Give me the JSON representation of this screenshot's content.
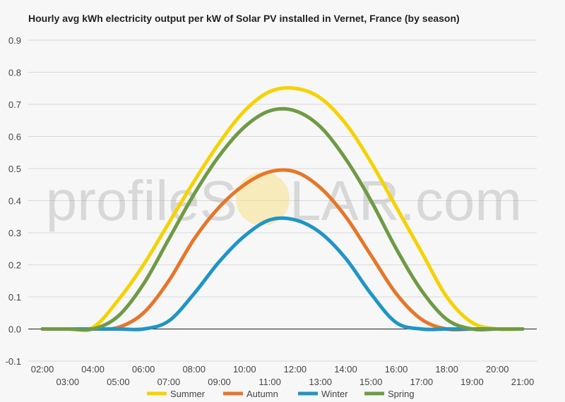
{
  "chart_data": {
    "type": "line",
    "title": "Hourly avg kWh electricity output per kW of Solar PV installed in Vernet, France (by season)",
    "xlabel": "",
    "ylabel": "",
    "x": [
      2,
      3,
      4,
      5,
      6,
      7,
      8,
      9,
      10,
      11,
      12,
      13,
      14,
      15,
      16,
      17,
      18,
      19,
      20,
      21
    ],
    "x_tick_labels": [
      "02:00",
      "03:00",
      "04:00",
      "05:00",
      "06:00",
      "07:00",
      "08:00",
      "09:00",
      "10:00",
      "11:00",
      "12:00",
      "13:00",
      "14:00",
      "15:00",
      "16:00",
      "17:00",
      "18:00",
      "19:00",
      "20:00",
      "21:00"
    ],
    "ylim": [
      -0.1,
      0.9
    ],
    "y_ticks": [
      "-0.1",
      "0.0",
      "0.1",
      "0.2",
      "0.3",
      "0.4",
      "0.5",
      "0.6",
      "0.7",
      "0.8",
      "0.9"
    ],
    "grid": true,
    "legend_position": "bottom",
    "series": [
      {
        "name": "Summer",
        "color": "#f5d200",
        "values": [
          0,
          0,
          0.005,
          0.09,
          0.2,
          0.33,
          0.46,
          0.58,
          0.68,
          0.74,
          0.75,
          0.72,
          0.64,
          0.52,
          0.38,
          0.24,
          0.1,
          0.02,
          0,
          0
        ]
      },
      {
        "name": "Autumn",
        "color": "#e6762a",
        "values": [
          0,
          0,
          0,
          0.005,
          0.05,
          0.15,
          0.28,
          0.38,
          0.45,
          0.49,
          0.49,
          0.44,
          0.35,
          0.23,
          0.11,
          0.03,
          0,
          0,
          0,
          0
        ]
      },
      {
        "name": "Winter",
        "color": "#1f95c6",
        "values": [
          0,
          0,
          0,
          0,
          0,
          0.025,
          0.11,
          0.21,
          0.29,
          0.34,
          0.34,
          0.3,
          0.22,
          0.11,
          0.02,
          0,
          0,
          0,
          0,
          0
        ]
      },
      {
        "name": "Spring",
        "color": "#6f9a45",
        "values": [
          0,
          0,
          0,
          0.04,
          0.14,
          0.28,
          0.42,
          0.54,
          0.63,
          0.68,
          0.68,
          0.63,
          0.53,
          0.4,
          0.25,
          0.12,
          0.03,
          0,
          0,
          0
        ]
      }
    ]
  },
  "watermark": {
    "text_left": "profileS",
    "text_right": "LAR.com",
    "sun_color": "#f7e08a"
  }
}
